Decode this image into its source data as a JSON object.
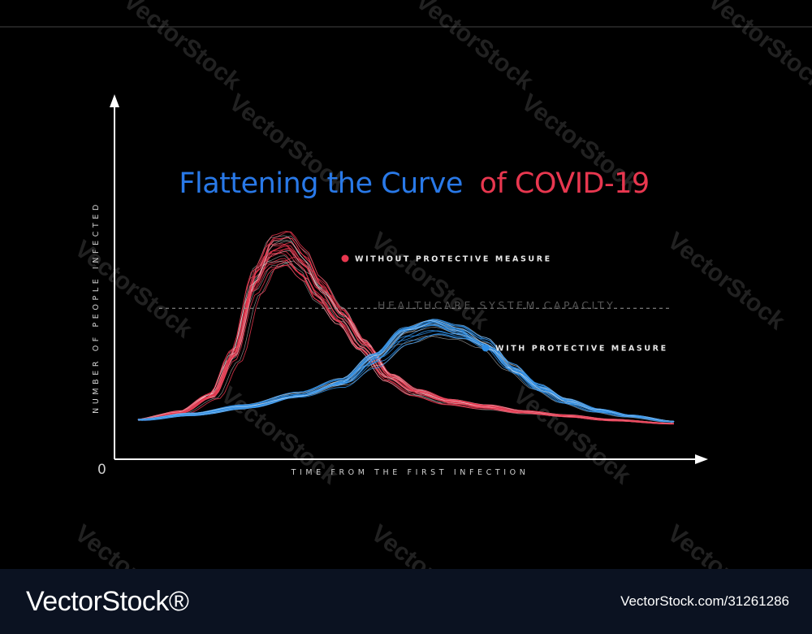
{
  "chart_data": {
    "type": "area",
    "title_part1": "Flattening the Curve",
    "title_part2": "of COVID-19",
    "xlabel": "TIME FROM THE FIRST INFECTION",
    "ylabel": "NUMBER OF PEOPLE INFECTED",
    "origin_label": "0",
    "reference_line": {
      "label": "HEALTHCARE SYSTEM CAPACITY",
      "value": 0.62
    },
    "xlim": [
      0,
      1
    ],
    "ylim": [
      0,
      1
    ],
    "series": [
      {
        "name": "WITHOUT PROTECTIVE MEASURE",
        "color": "#e8374f",
        "x": [
          0,
          0.08,
          0.14,
          0.18,
          0.22,
          0.25,
          0.28,
          0.31,
          0.34,
          0.38,
          0.42,
          0.47,
          0.52,
          0.58,
          0.65,
          0.72,
          0.8,
          0.88,
          1.0
        ],
        "y": [
          0.05,
          0.09,
          0.18,
          0.4,
          0.8,
          0.95,
          0.97,
          0.88,
          0.74,
          0.6,
          0.45,
          0.28,
          0.2,
          0.15,
          0.12,
          0.09,
          0.07,
          0.05,
          0.03
        ]
      },
      {
        "name": "WITH PROTECTIVE MEASURE",
        "color": "#2f8fe6",
        "x": [
          0,
          0.1,
          0.2,
          0.3,
          0.38,
          0.44,
          0.5,
          0.55,
          0.6,
          0.65,
          0.7,
          0.75,
          0.8,
          0.86,
          0.92,
          1.0
        ],
        "y": [
          0.05,
          0.08,
          0.12,
          0.18,
          0.25,
          0.38,
          0.52,
          0.56,
          0.52,
          0.45,
          0.32,
          0.22,
          0.15,
          0.1,
          0.07,
          0.04
        ]
      }
    ],
    "colors": {
      "title_blue": "#2979e8",
      "title_red": "#e8374f",
      "background": "#000000"
    }
  },
  "watermark": {
    "text": "VectorStock"
  },
  "footer": {
    "logo": "VectorStock®",
    "credit": "VectorStock.com/31261286"
  }
}
